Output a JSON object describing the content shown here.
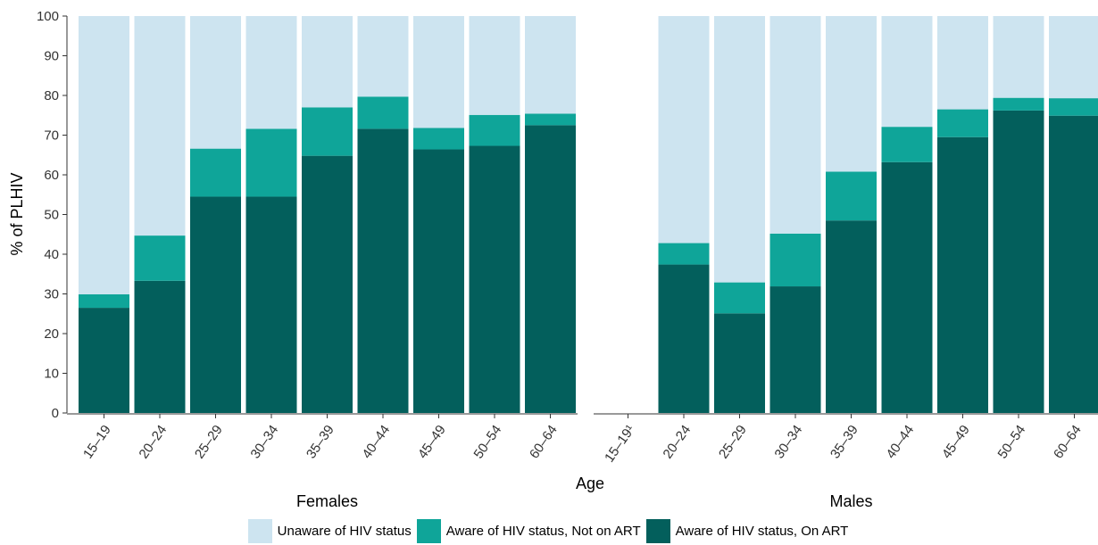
{
  "chart_data": {
    "type": "bar",
    "stacked": true,
    "ylabel": "% of PLHIV",
    "xlabel": "Age",
    "ylim": [
      0,
      100
    ],
    "yticks": [
      0,
      10,
      20,
      30,
      40,
      50,
      60,
      70,
      80,
      90,
      100
    ],
    "grid": false,
    "legend_position": "bottom",
    "colors": {
      "unaware": "#cde4f0",
      "aware_not_on_art": "#0fa599",
      "on_art": "#035f5c"
    },
    "legend": [
      {
        "key": "unaware",
        "label": "Unaware of HIV status"
      },
      {
        "key": "aware_not_on_art",
        "label": "Aware of HIV status, Not on ART"
      },
      {
        "key": "on_art",
        "label": "Aware of HIV status, On ART"
      }
    ],
    "panels": [
      {
        "title": "Females",
        "categories": [
          "15–19",
          "20–24",
          "25–29",
          "30–34",
          "35–39",
          "40–44",
          "45–49",
          "50–54",
          "60–64"
        ],
        "series": [
          {
            "key": "on_art",
            "values": [
              26.5,
              33.3,
              54.5,
              54.5,
              64.8,
              71.6,
              66.4,
              67.3,
              72.5
            ]
          },
          {
            "key": "aware_not_on_art",
            "values": [
              3.4,
              11.4,
              12.1,
              17.1,
              12.2,
              8.1,
              5.4,
              7.8,
              2.9
            ]
          },
          {
            "key": "unaware",
            "values": [
              70.1,
              55.3,
              33.4,
              28.4,
              23.0,
              20.3,
              28.2,
              24.9,
              24.6
            ]
          }
        ]
      },
      {
        "title": "Males",
        "categories": [
          "15–19¹",
          "20–24",
          "25–29",
          "30–34",
          "35–39",
          "40–44",
          "45–49",
          "50–54",
          "60–64"
        ],
        "series": [
          {
            "key": "on_art",
            "values": [
              null,
              37.4,
              25.1,
              31.9,
              48.5,
              63.2,
              69.5,
              76.2,
              74.9
            ]
          },
          {
            "key": "aware_not_on_art",
            "values": [
              null,
              5.4,
              7.8,
              13.3,
              12.3,
              8.9,
              7.0,
              3.2,
              4.4
            ]
          },
          {
            "key": "unaware",
            "values": [
              null,
              57.2,
              67.1,
              54.8,
              39.2,
              27.9,
              23.5,
              20.6,
              20.7
            ]
          }
        ]
      }
    ]
  }
}
